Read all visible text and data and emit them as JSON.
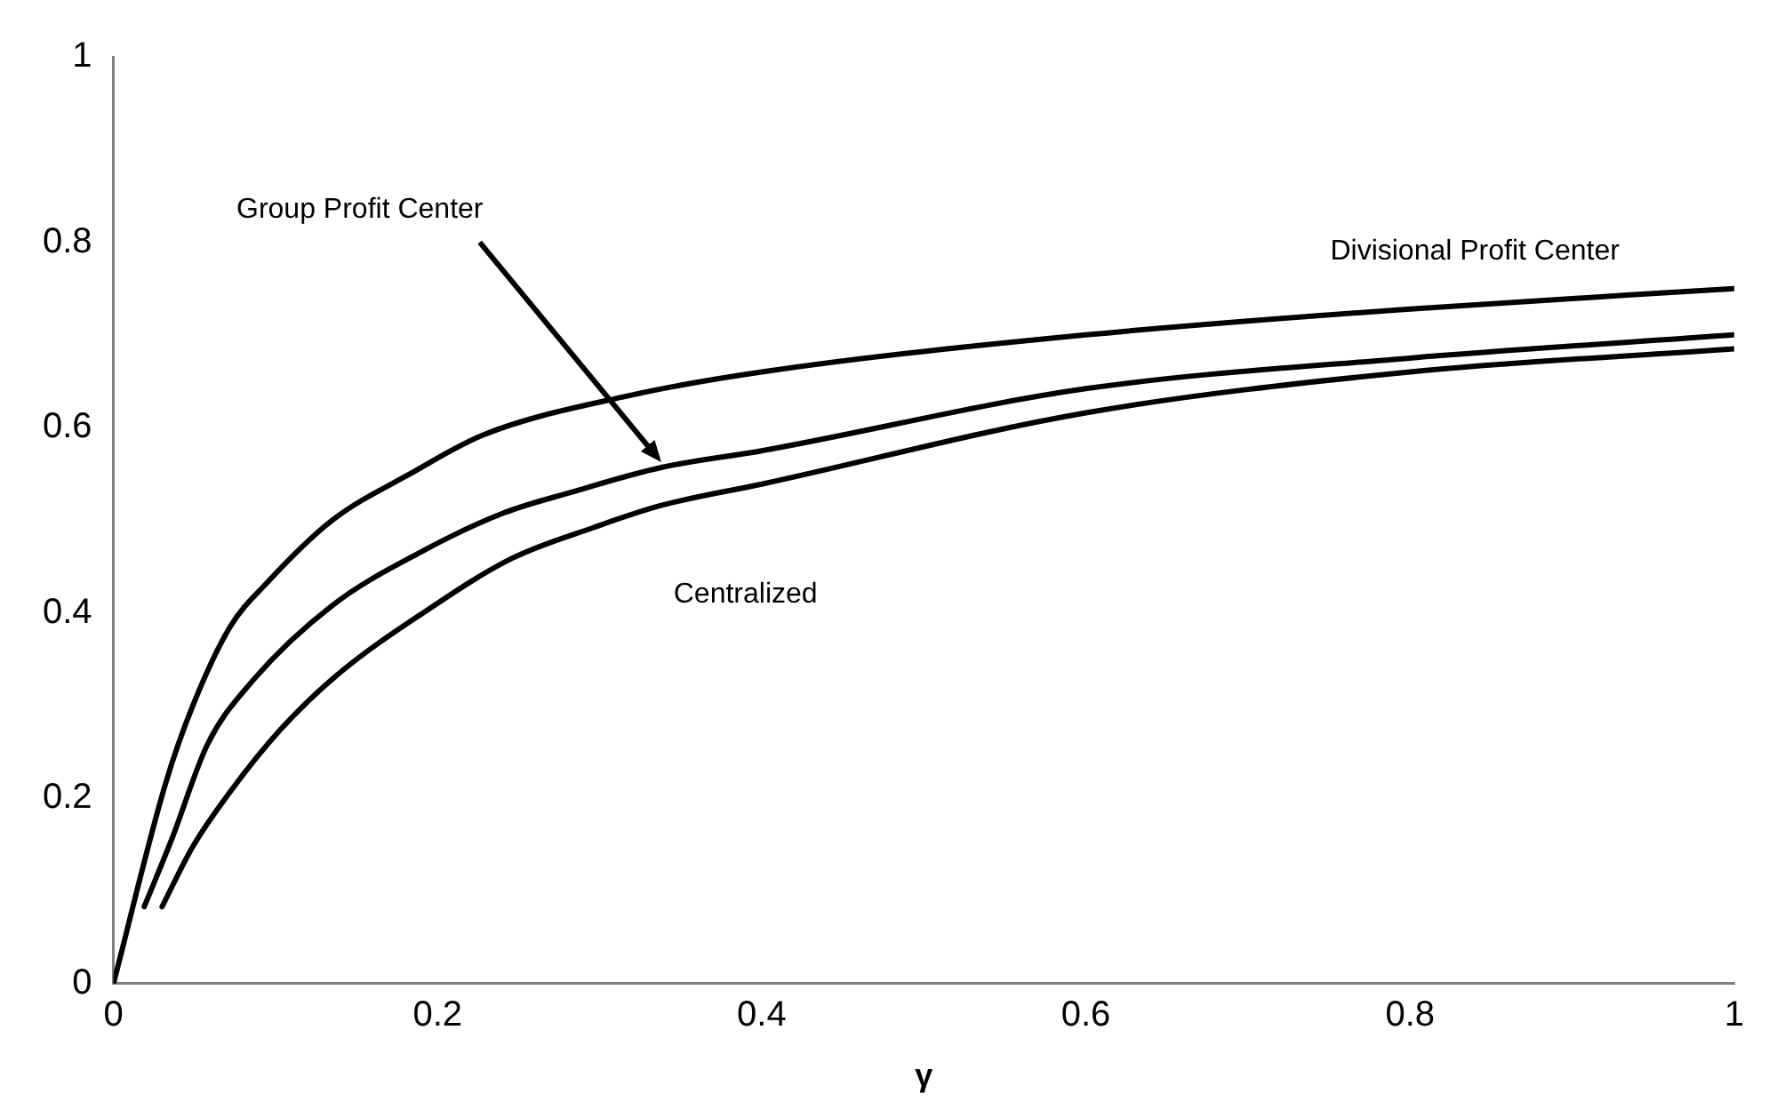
{
  "chart_data": {
    "type": "line",
    "xlabel": "γ",
    "xlim": [
      0,
      1
    ],
    "ylim": [
      0,
      1
    ],
    "xticks": [
      0,
      0.2,
      0.4,
      0.6,
      0.8,
      1
    ],
    "yticks": [
      0,
      0.2,
      0.4,
      0.6,
      0.8,
      1
    ],
    "grid": false,
    "legend": false,
    "marker": "none",
    "line_style": "solid",
    "series": [
      {
        "name": "Divisional Profit Center",
        "color": "#000000",
        "x": [
          0,
          0.032,
          0.049,
          0.072,
          0.095,
          0.135,
          0.184,
          0.228,
          0.317,
          0.4,
          0.6,
          0.8,
          1
        ],
        "values": [
          0,
          0.215,
          0.3,
          0.385,
          0.433,
          0.5,
          0.551,
          0.592,
          0.634,
          0.66,
          0.7,
          0.728,
          0.75
        ]
      },
      {
        "name": "Group Profit Center",
        "color": "#000000",
        "x": [
          0.019,
          0.036,
          0.058,
          0.085,
          0.135,
          0.191,
          0.241,
          0.282,
          0.338,
          0.4,
          0.6,
          0.8,
          1
        ],
        "values": [
          0.083,
          0.156,
          0.258,
          0.325,
          0.408,
          0.467,
          0.508,
          0.53,
          0.557,
          0.575,
          0.642,
          0.675,
          0.7
        ]
      },
      {
        "name": "Centralized",
        "color": "#000000",
        "x": [
          0.03,
          0.049,
          0.072,
          0.103,
          0.138,
          0.191,
          0.246,
          0.296,
          0.338,
          0.4,
          0.6,
          0.8,
          1
        ],
        "values": [
          0.083,
          0.148,
          0.207,
          0.274,
          0.333,
          0.4,
          0.459,
          0.492,
          0.516,
          0.539,
          0.616,
          0.66,
          0.685
        ]
      }
    ]
  }
}
